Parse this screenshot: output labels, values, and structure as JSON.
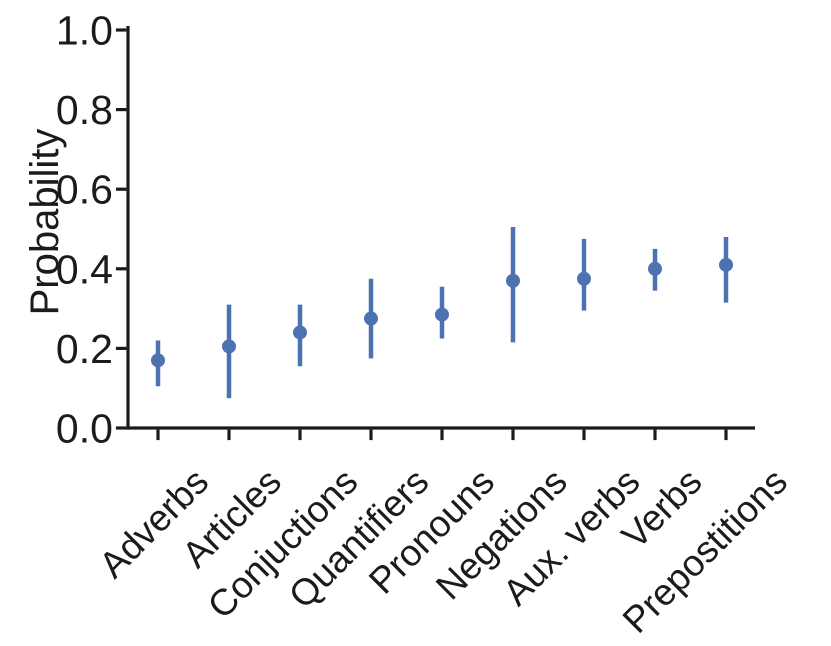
{
  "figure": {
    "background": "#ffffff"
  },
  "chart_data": {
    "type": "scatter",
    "subtype": "point-plot-with-error-bars",
    "title": "",
    "xlabel": "",
    "ylabel": "Probability",
    "categories": [
      "Adverbs",
      "Articles",
      "Conjuctions",
      "Quantifiers",
      "Pronouns",
      "Negations",
      "Aux. verbs",
      "Verbs",
      "Prepostitions"
    ],
    "values": [
      0.17,
      0.205,
      0.24,
      0.275,
      0.285,
      0.37,
      0.375,
      0.4,
      0.41
    ],
    "error_low": [
      0.105,
      0.075,
      0.155,
      0.175,
      0.225,
      0.215,
      0.295,
      0.345,
      0.315
    ],
    "error_high": [
      0.22,
      0.31,
      0.31,
      0.375,
      0.355,
      0.505,
      0.475,
      0.45,
      0.48
    ],
    "ylim": [
      0.0,
      1.0
    ],
    "ytick_values": [
      0.0,
      0.2,
      0.4,
      0.6,
      0.8,
      1.0
    ],
    "ytick_labels": [
      "0.0",
      "0.2",
      "0.4",
      "0.6",
      "0.8",
      "1.0"
    ],
    "xtick_rotation_deg": 45,
    "grid": false,
    "legend_position": "none",
    "point_color": "#4C72B0",
    "axis_color": "#1b1b1b",
    "marker": "circle"
  }
}
